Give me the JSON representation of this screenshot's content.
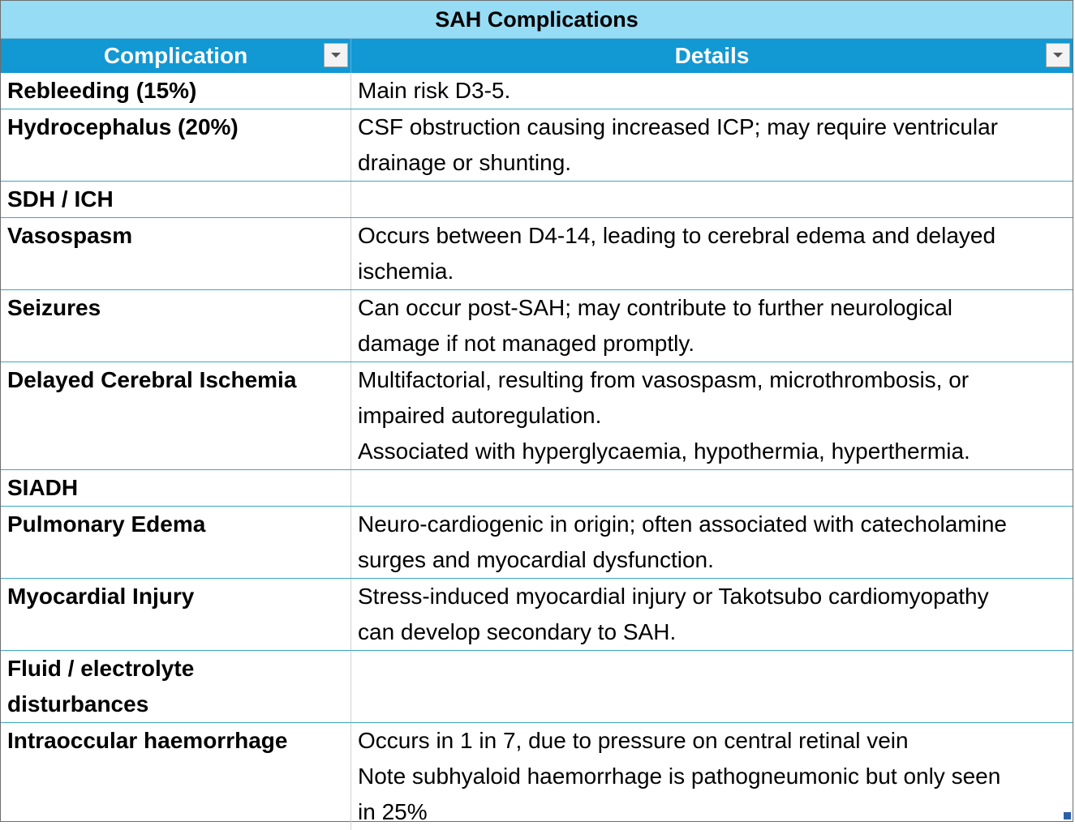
{
  "table": {
    "title": "SAH Complications",
    "columns": [
      "Complication",
      "Details"
    ],
    "rows": [
      {
        "complication": "Rebleeding (15%)",
        "details": "Main risk D3-5."
      },
      {
        "complication": "Hydrocephalus (20%)",
        "details": "CSF obstruction causing increased ICP; may require ventricular\ndrainage or shunting."
      },
      {
        "complication": "SDH / ICH",
        "details": ""
      },
      {
        "complication": "Vasospasm",
        "details": "Occurs between D4-14, leading to cerebral edema and delayed\nischemia."
      },
      {
        "complication": "Seizures",
        "details": "Can occur post-SAH; may contribute to further neurological\ndamage if not managed promptly."
      },
      {
        "complication": "Delayed Cerebral Ischemia",
        "details": "Multifactorial, resulting from vasospasm, microthrombosis, or\nimpaired autoregulation.\nAssociated with hyperglycaemia, hypothermia, hyperthermia."
      },
      {
        "complication": "SIADH",
        "details": ""
      },
      {
        "complication": "Pulmonary Edema",
        "details": "Neuro-cardiogenic in origin; often associated with catecholamine\nsurges and myocardial dysfunction."
      },
      {
        "complication": "Myocardial Injury",
        "details": "Stress-induced myocardial injury or Takotsubo cardiomyopathy\ncan develop secondary to SAH."
      },
      {
        "complication": "Fluid / electrolyte\ndisturbances",
        "details": ""
      },
      {
        "complication": "Intraoccular haemorrhage",
        "details": "Occurs in 1 in 7, due to pressure on central retinal vein\nNote subhyaloid haemorrhage is pathogneumonic but only seen\nin 25%"
      }
    ]
  },
  "icons": {
    "filter": "filter-dropdown-icon",
    "resize": "table-resize-handle-icon"
  },
  "colors": {
    "title_bg": "#97dcf5",
    "header_bg": "#1298d3",
    "row_border": "#3aa6c8"
  }
}
